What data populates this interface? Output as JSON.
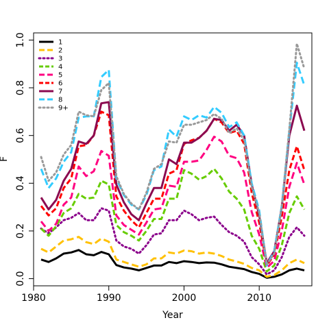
{
  "chart_data": {
    "type": "line",
    "xlabel": "Year",
    "ylabel": "F",
    "xlim": [
      1980,
      2017
    ],
    "ylim": [
      -0.03,
      1.03
    ],
    "xticks": [
      1980,
      1990,
      2000,
      2010
    ],
    "yticks": [
      0.0,
      0.2,
      0.4,
      0.6,
      0.8,
      1.0
    ],
    "xtick_labels": [
      "1980",
      "1990",
      "2000",
      "2010"
    ],
    "ytick_labels": [
      "0.0",
      "0.2",
      "0.4",
      "0.6",
      "0.8",
      "1.0"
    ],
    "legend_position": "top-left",
    "x": [
      1981,
      1982,
      1983,
      1984,
      1985,
      1986,
      1987,
      1988,
      1989,
      1990,
      1991,
      1992,
      1993,
      1994,
      1995,
      1996,
      1997,
      1998,
      1999,
      2000,
      2001,
      2002,
      2003,
      2004,
      2005,
      2006,
      2007,
      2008,
      2009,
      2010,
      2011,
      2012,
      2013,
      2014,
      2015,
      2016
    ],
    "series": [
      {
        "name": "1",
        "color": "#000000",
        "dash": "solid",
        "values": [
          0.08,
          0.07,
          0.085,
          0.105,
          0.11,
          0.12,
          0.102,
          0.098,
          0.112,
          0.102,
          0.057,
          0.047,
          0.042,
          0.035,
          0.045,
          0.055,
          0.055,
          0.07,
          0.065,
          0.073,
          0.07,
          0.065,
          0.068,
          0.067,
          0.06,
          0.05,
          0.045,
          0.04,
          0.028,
          0.02,
          0.004,
          0.008,
          0.018,
          0.035,
          0.042,
          0.035
        ]
      },
      {
        "name": "2",
        "color": "#FFC107",
        "dash": "long",
        "values": [
          0.125,
          0.11,
          0.135,
          0.16,
          0.165,
          0.175,
          0.153,
          0.145,
          0.168,
          0.155,
          0.08,
          0.07,
          0.06,
          0.05,
          0.06,
          0.085,
          0.085,
          0.11,
          0.105,
          0.118,
          0.115,
          0.105,
          0.11,
          0.105,
          0.095,
          0.08,
          0.072,
          0.062,
          0.045,
          0.035,
          0.008,
          0.015,
          0.035,
          0.065,
          0.08,
          0.065
        ]
      },
      {
        "name": "3",
        "color": "#8B008B",
        "dash": "dot",
        "values": [
          0.21,
          0.19,
          0.215,
          0.245,
          0.255,
          0.275,
          0.245,
          0.245,
          0.295,
          0.285,
          0.16,
          0.135,
          0.125,
          0.105,
          0.14,
          0.185,
          0.19,
          0.245,
          0.245,
          0.285,
          0.27,
          0.245,
          0.255,
          0.26,
          0.225,
          0.195,
          0.18,
          0.155,
          0.09,
          0.06,
          0.018,
          0.035,
          0.09,
          0.175,
          0.215,
          0.18
        ]
      },
      {
        "name": "4",
        "color": "#66CC00",
        "dash": "dash",
        "values": [
          0.21,
          0.18,
          0.22,
          0.275,
          0.295,
          0.355,
          0.335,
          0.34,
          0.41,
          0.395,
          0.225,
          0.195,
          0.18,
          0.16,
          0.2,
          0.25,
          0.25,
          0.335,
          0.335,
          0.455,
          0.44,
          0.415,
          0.43,
          0.46,
          0.42,
          0.365,
          0.335,
          0.29,
          0.18,
          0.125,
          0.03,
          0.055,
          0.14,
          0.275,
          0.345,
          0.29
        ]
      },
      {
        "name": "5",
        "color": "#FF0080",
        "dash": "long",
        "values": [
          0.24,
          0.2,
          0.23,
          0.31,
          0.34,
          0.47,
          0.43,
          0.45,
          0.535,
          0.515,
          0.265,
          0.225,
          0.205,
          0.185,
          0.235,
          0.29,
          0.295,
          0.39,
          0.385,
          0.49,
          0.49,
          0.495,
          0.54,
          0.595,
          0.575,
          0.515,
          0.505,
          0.445,
          0.28,
          0.185,
          0.045,
          0.075,
          0.2,
          0.385,
          0.485,
          0.395
        ]
      },
      {
        "name": "6",
        "color": "#FF0000",
        "dash": "dash",
        "values": [
          0.305,
          0.265,
          0.295,
          0.38,
          0.42,
          0.555,
          0.56,
          0.6,
          0.7,
          0.685,
          0.345,
          0.285,
          0.245,
          0.215,
          0.275,
          0.335,
          0.335,
          0.44,
          0.455,
          0.565,
          0.58,
          0.59,
          0.62,
          0.67,
          0.655,
          0.61,
          0.62,
          0.565,
          0.36,
          0.235,
          0.055,
          0.1,
          0.26,
          0.455,
          0.555,
          0.455
        ]
      },
      {
        "name": "7",
        "color": "#8B0A50",
        "dash": "solid",
        "values": [
          0.34,
          0.29,
          0.33,
          0.41,
          0.46,
          0.575,
          0.565,
          0.6,
          0.735,
          0.74,
          0.395,
          0.32,
          0.27,
          0.245,
          0.315,
          0.38,
          0.38,
          0.5,
          0.48,
          0.57,
          0.57,
          0.59,
          0.62,
          0.67,
          0.665,
          0.62,
          0.645,
          0.6,
          0.395,
          0.265,
          0.065,
          0.115,
          0.3,
          0.6,
          0.725,
          0.62
        ]
      },
      {
        "name": "8",
        "color": "#33CCFF",
        "dash": "long",
        "values": [
          0.46,
          0.38,
          0.42,
          0.49,
          0.53,
          0.675,
          0.68,
          0.68,
          0.845,
          0.875,
          0.42,
          0.35,
          0.31,
          0.29,
          0.35,
          0.455,
          0.47,
          0.625,
          0.595,
          0.68,
          0.665,
          0.685,
          0.675,
          0.72,
          0.695,
          0.635,
          0.655,
          0.6,
          0.4,
          0.285,
          0.055,
          0.115,
          0.305,
          0.62,
          0.905,
          0.81
        ]
      },
      {
        "name": "9+",
        "color": "#999999",
        "dash": "dot",
        "values": [
          0.51,
          0.41,
          0.445,
          0.52,
          0.56,
          0.7,
          0.685,
          0.68,
          0.79,
          0.82,
          0.43,
          0.355,
          0.315,
          0.29,
          0.36,
          0.46,
          0.48,
          0.575,
          0.57,
          0.645,
          0.645,
          0.655,
          0.665,
          0.69,
          0.67,
          0.61,
          0.63,
          0.58,
          0.385,
          0.275,
          0.06,
          0.105,
          0.3,
          0.625,
          0.985,
          0.88
        ]
      }
    ]
  }
}
